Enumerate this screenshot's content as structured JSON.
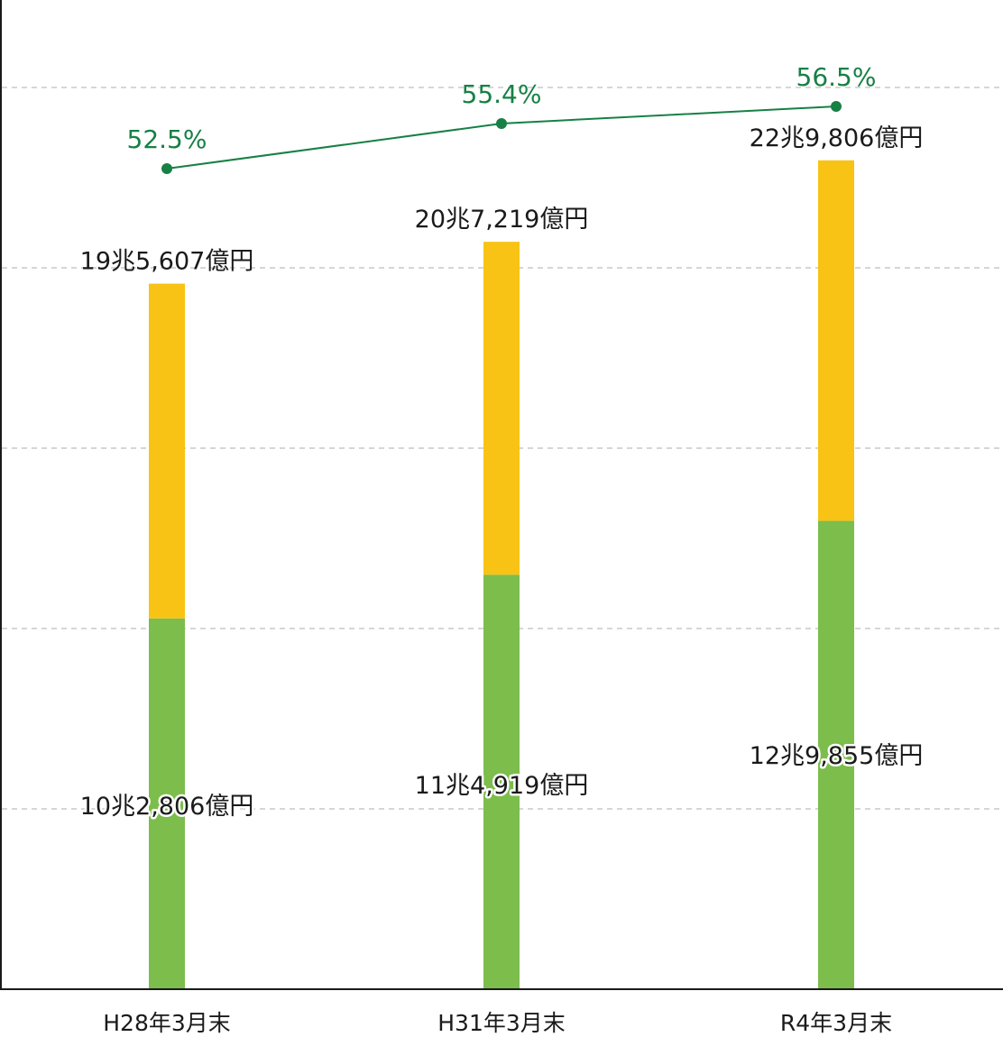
{
  "chart_data": {
    "type": "bar",
    "stacked": true,
    "categories": [
      "H28年3月末",
      "H31年3月末",
      "R4年3月末"
    ],
    "series": [
      {
        "values": [
          102806,
          114919,
          129855
        ],
        "labels": [
          "10兆2,806億円",
          "11兆4,919億円",
          "12兆9,855億円"
        ],
        "color": "#7cbd4b"
      },
      {
        "values": [
          92801,
          92300,
          99951
        ],
        "color": "#f8c315"
      }
    ],
    "totals": [
      195607,
      207219,
      229806
    ],
    "total_labels": [
      "19兆5,607億円",
      "20兆7,219億円",
      "22兆9,806億円"
    ],
    "line": {
      "values": [
        52.5,
        55.4,
        56.5
      ],
      "labels": [
        "52.5%",
        "55.4%",
        "56.5%"
      ],
      "color": "#178045"
    },
    "ylim": [
      0,
      250000
    ],
    "grid": true
  }
}
